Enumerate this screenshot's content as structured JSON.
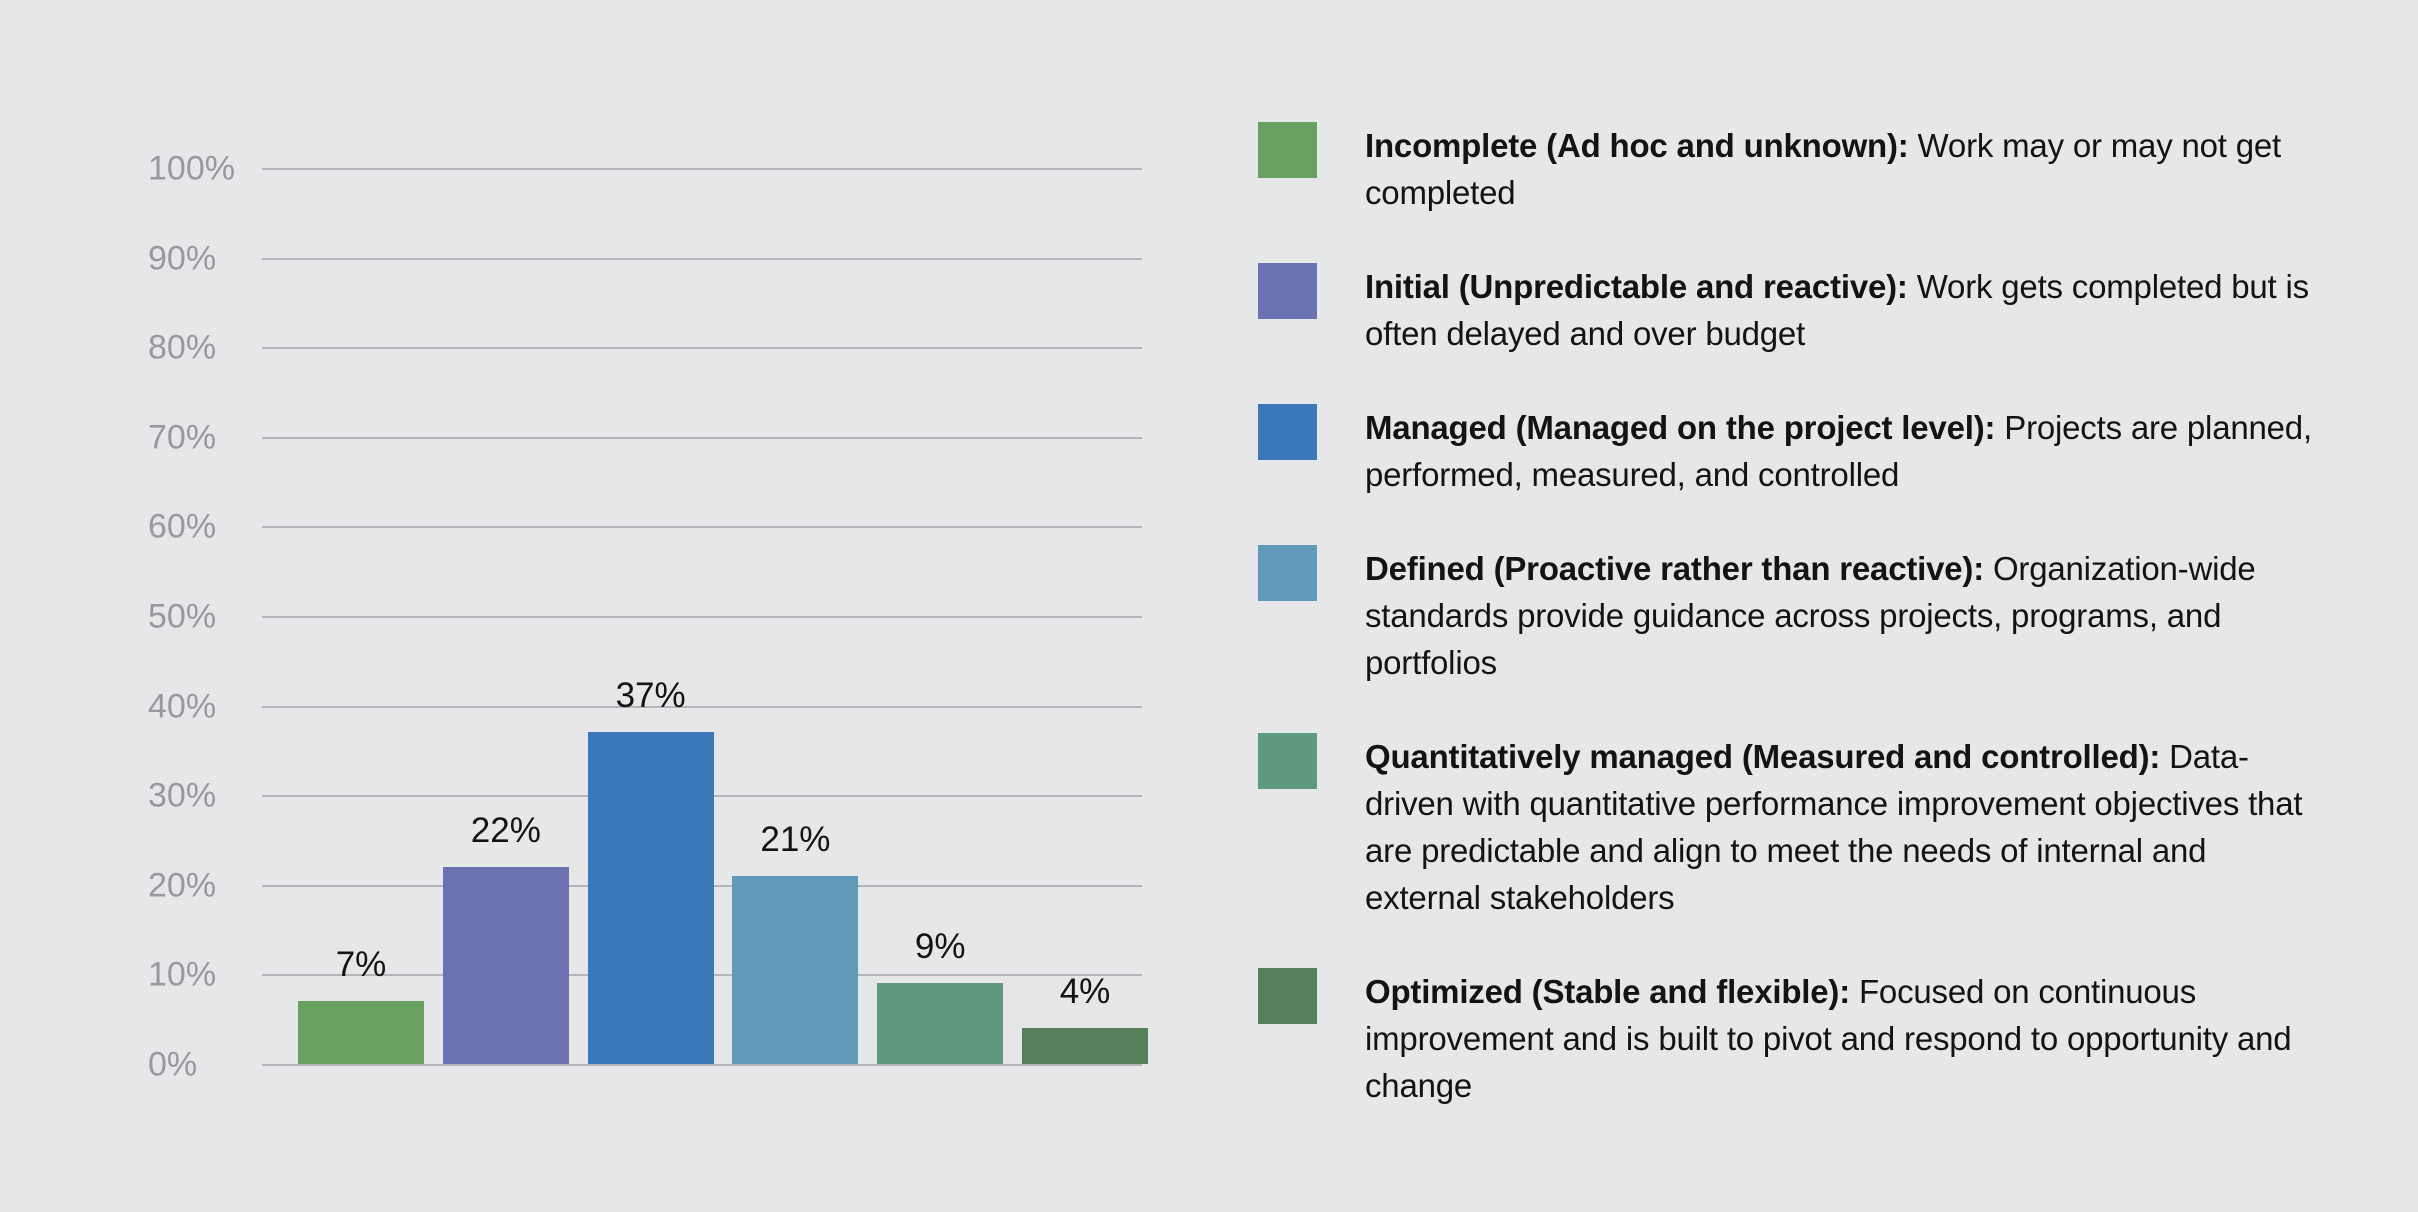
{
  "background_color": "#e6e7e9",
  "text_color": "#131313",
  "axis": {
    "tick_label_color": "#97999c",
    "gridline_color": "#b4b5b8",
    "ticks": [
      {
        "label": "100%",
        "value": 100
      },
      {
        "label": "90%",
        "value": 90
      },
      {
        "label": "80%",
        "value": 80
      },
      {
        "label": "70%",
        "value": 70
      },
      {
        "label": "60%",
        "value": 60
      },
      {
        "label": "50%",
        "value": 50
      },
      {
        "label": "40%",
        "value": 40
      },
      {
        "label": "30%",
        "value": 30
      },
      {
        "label": "20%",
        "value": 20
      },
      {
        "label": "10%",
        "value": 10
      },
      {
        "label": "0%",
        "value": 0
      }
    ]
  },
  "chart_data": {
    "type": "bar",
    "title": "",
    "xlabel": "",
    "ylabel": "",
    "ylim": [
      0,
      100
    ],
    "grid": true,
    "legend_position": "right",
    "ytick_labels": [
      "100%",
      "90%",
      "80%",
      "70%",
      "60%",
      "50%",
      "40%",
      "30%",
      "20%",
      "10%",
      "0%"
    ],
    "categories": [
      "Incomplete (Ad hoc and unknown)",
      "Initial (Unpredictable and reactive)",
      "Managed (Managed on the project level)",
      "Defined (Proactive rather than reactive)",
      "Quantitatively managed (Measured and controlled)",
      "Optimized (Stable and flexible)"
    ],
    "values": [
      7,
      22,
      37,
      21,
      9,
      4
    ],
    "value_labels": [
      "7%",
      "22%",
      "37%",
      "21%",
      "9%",
      "4%"
    ],
    "bar_colors": [
      "#68a062",
      "#6b72b1",
      "#3a79b7",
      "#6199bb",
      "#5f997e",
      "#54815b"
    ]
  },
  "legend": {
    "items": [
      {
        "color": "#68a062",
        "term": "Incomplete (Ad hoc and unknown):",
        "description": "Work may or may not get completed"
      },
      {
        "color": "#6b72b1",
        "term": "Initial (Unpredictable and reactive):",
        "description": "Work gets completed but is often delayed and over budget"
      },
      {
        "color": "#3a79b7",
        "term": "Managed (Managed on the project level):",
        "description": "Projects are planned, performed, measured, and controlled"
      },
      {
        "color": "#6199bb",
        "term": "Defined (Proactive rather than reactive):",
        "description": "Organization-wide standards provide guidance across projects, programs, and portfolios"
      },
      {
        "color": "#5f997e",
        "term": "Quantitatively managed (Measured and controlled):",
        "description": "Data-driven with quantitative performance improvement objectives that are predictable and align to meet the needs of internal and external stakeholders"
      },
      {
        "color": "#54815b",
        "term": "Optimized (Stable and flexible):",
        "description": "Focused on continuous improvement and is built to pivot and respond to opportunity and change"
      }
    ]
  }
}
